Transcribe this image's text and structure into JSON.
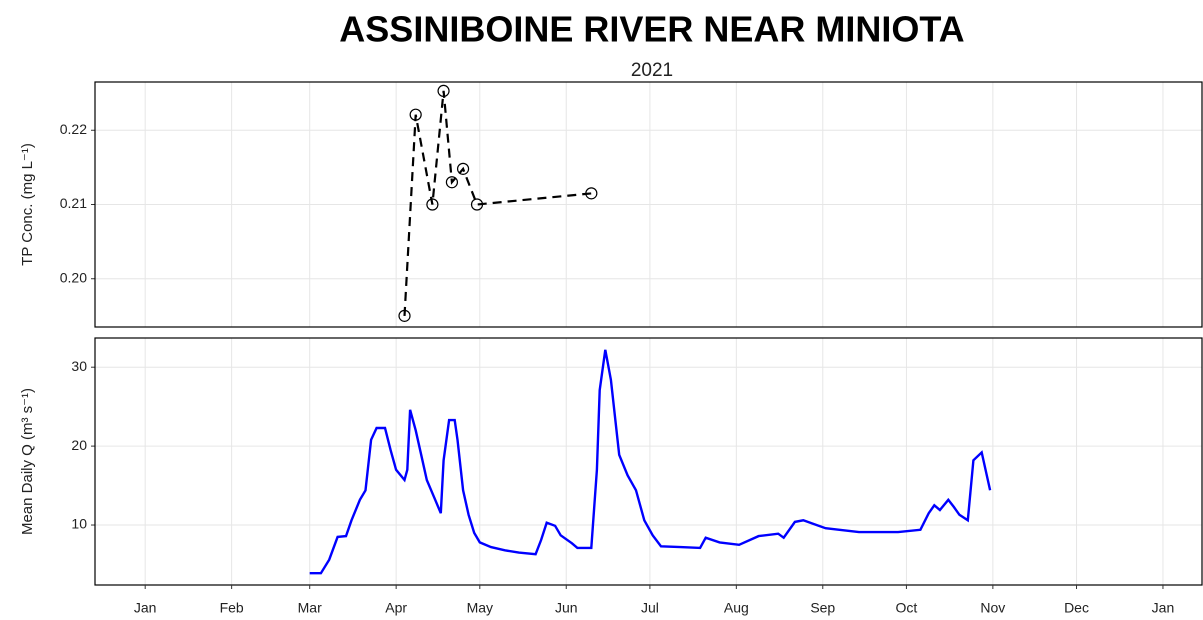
{
  "chart_data": [
    {
      "type": "line",
      "title": "ASSINIBOINE RIVER NEAR MINIOTA",
      "subtitle": "2021",
      "y_label": "TP Conc. (mg L⁻¹)",
      "color": "#000000",
      "line_style": "dashed",
      "marker": "open-circle",
      "x": [
        "2021-04-04",
        "2021-04-08",
        "2021-04-14",
        "2021-04-18",
        "2021-04-21",
        "2021-04-25",
        "2021-04-30",
        "2021-06-10"
      ],
      "values": [
        0.195,
        0.2221,
        0.21,
        0.2253,
        0.213,
        0.2148,
        0.21,
        0.2115
      ],
      "ylim": [
        0.1935,
        0.2265
      ],
      "yticks": [
        {
          "value": 0.2,
          "label": "0.20"
        },
        0.21,
        0.22
      ],
      "grid": true
    },
    {
      "type": "line",
      "y_label": "Mean Daily Q (m³ s⁻¹)",
      "color": "#0000ff",
      "line_style": "solid",
      "x": [
        "2021-03-01",
        "2021-03-05",
        "2021-03-08",
        "2021-03-11",
        "2021-03-14",
        "2021-03-16",
        "2021-03-19",
        "2021-03-21",
        "2021-03-23",
        "2021-03-25",
        "2021-03-28",
        "2021-03-30",
        "2021-04-01",
        "2021-04-04",
        "2021-04-05",
        "2021-04-06",
        "2021-04-08",
        "2021-04-10",
        "2021-04-12",
        "2021-04-15",
        "2021-04-17",
        "2021-04-18",
        "2021-04-20",
        "2021-04-22",
        "2021-04-23",
        "2021-04-25",
        "2021-04-27",
        "2021-04-29",
        "2021-05-01",
        "2021-05-05",
        "2021-05-10",
        "2021-05-15",
        "2021-05-21",
        "2021-05-23",
        "2021-05-25",
        "2021-05-28",
        "2021-05-30",
        "2021-06-03",
        "2021-06-05",
        "2021-06-10",
        "2021-06-12",
        "2021-06-13",
        "2021-06-15",
        "2021-06-17",
        "2021-06-20",
        "2021-06-23",
        "2021-06-26",
        "2021-06-29",
        "2021-07-02",
        "2021-07-05",
        "2021-07-12",
        "2021-07-19",
        "2021-07-21",
        "2021-07-26",
        "2021-08-02",
        "2021-08-09",
        "2021-08-16",
        "2021-08-18",
        "2021-08-22",
        "2021-08-25",
        "2021-08-29",
        "2021-09-02",
        "2021-09-07",
        "2021-09-14",
        "2021-09-21",
        "2021-09-28",
        "2021-10-06",
        "2021-10-09",
        "2021-10-11",
        "2021-10-13",
        "2021-10-16",
        "2021-10-18",
        "2021-10-20",
        "2021-10-23",
        "2021-10-25",
        "2021-10-28",
        "2021-10-31"
      ],
      "values": [
        3.9,
        3.9,
        5.6,
        8.5,
        8.6,
        10.6,
        13.2,
        14.4,
        20.8,
        22.3,
        22.3,
        19.5,
        17.0,
        15.7,
        17.0,
        24.6,
        22.0,
        18.9,
        15.7,
        13.2,
        11.5,
        18.2,
        23.3,
        23.3,
        20.8,
        14.4,
        11.3,
        9.0,
        7.8,
        7.2,
        6.8,
        6.5,
        6.3,
        8.1,
        10.3,
        9.9,
        8.7,
        7.7,
        7.1,
        7.1,
        17.0,
        27.1,
        32.2,
        28.4,
        18.9,
        16.3,
        14.4,
        10.6,
        8.7,
        7.3,
        7.2,
        7.1,
        8.4,
        7.8,
        7.5,
        8.6,
        8.9,
        8.4,
        10.4,
        10.6,
        10.1,
        9.6,
        9.4,
        9.1,
        9.1,
        9.1,
        9.4,
        11.5,
        12.5,
        11.9,
        13.2,
        12.3,
        11.3,
        10.6,
        18.2,
        19.2,
        14.4
      ],
      "ylim": [
        2.4,
        33.7
      ],
      "yticks": [
        10,
        20,
        30
      ],
      "grid": true,
      "xlim": [
        "2020-12-14",
        "2022-01-15"
      ],
      "xticks": [
        {
          "value": "2021-01-01",
          "label": "Jan"
        },
        {
          "value": "2021-02-01",
          "label": "Feb"
        },
        {
          "value": "2021-03-01",
          "label": "Mar"
        },
        {
          "value": "2021-04-01",
          "label": "Apr"
        },
        {
          "value": "2021-05-01",
          "label": "May"
        },
        {
          "value": "2021-06-01",
          "label": "Jun"
        },
        {
          "value": "2021-07-01",
          "label": "Jul"
        },
        {
          "value": "2021-08-01",
          "label": "Aug"
        },
        {
          "value": "2021-09-01",
          "label": "Sep"
        },
        {
          "value": "2021-10-01",
          "label": "Oct"
        },
        {
          "value": "2021-11-01",
          "label": "Nov"
        },
        {
          "value": "2021-12-01",
          "label": "Dec"
        },
        {
          "value": "2022-01-01",
          "label": "Jan"
        }
      ]
    }
  ]
}
